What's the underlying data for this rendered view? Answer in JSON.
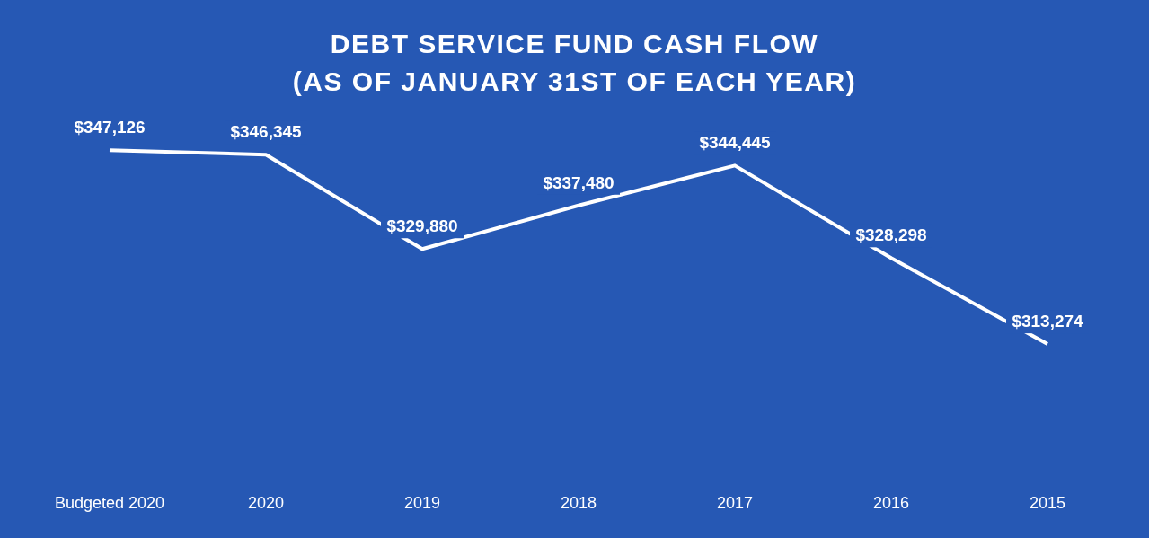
{
  "chart_data": {
    "type": "line",
    "title": "DEBT SERVICE FUND CASH FLOW",
    "subtitle": "(AS OF JANUARY 31ST OF EACH YEAR)",
    "categories": [
      "Budgeted 2020",
      "2020",
      "2019",
      "2018",
      "2017",
      "2016",
      "2015"
    ],
    "series": [
      {
        "color": "#ffffff",
        "values": [
          347126,
          346345,
          329880,
          337480,
          344445,
          328298,
          313274
        ],
        "value_labels": [
          "$347,126",
          "$346,345",
          "$329,880",
          "$337,480",
          "$344,445",
          "$328,298",
          "$313,274"
        ]
      }
    ]
  }
}
